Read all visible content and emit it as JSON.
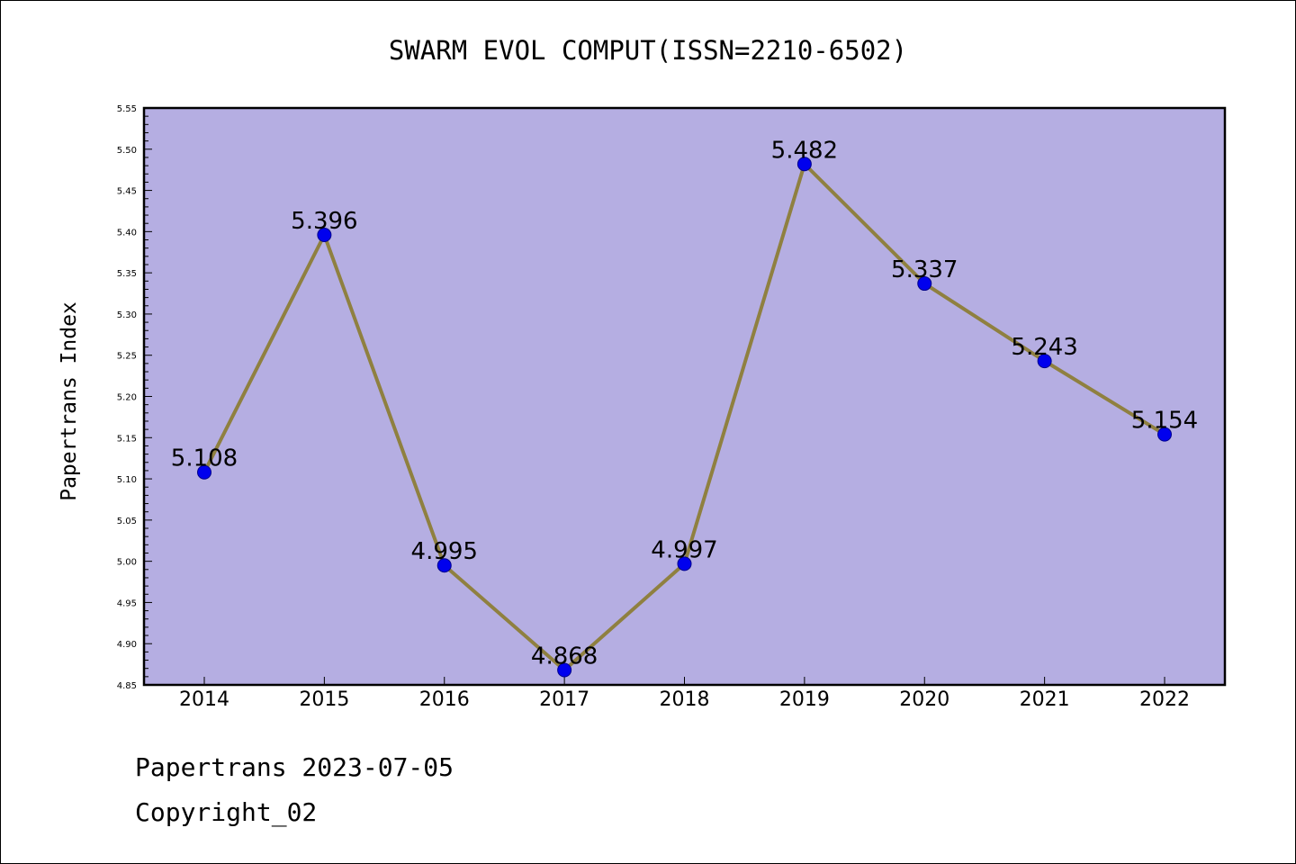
{
  "footer": {
    "line1": "Papertrans 2023-07-05",
    "line2": "Copyright_02"
  },
  "colors": {
    "plot_background": "#b5aee2",
    "line": "#8f8040",
    "marker": "#0000ee",
    "marker_edge": "#00008b"
  },
  "chart_data": {
    "type": "line",
    "title": "SWARM EVOL COMPUT(ISSN=2210-6502)",
    "xlabel": "",
    "ylabel": "Papertrans Index",
    "categories": [
      "2014",
      "2015",
      "2016",
      "2017",
      "2018",
      "2019",
      "2020",
      "2021",
      "2022"
    ],
    "series": [
      {
        "values": [
          5.108,
          5.396,
          4.995,
          4.868,
          4.997,
          5.482,
          5.337,
          5.243,
          5.154
        ],
        "labels": [
          "5.108",
          "5.396",
          "4.995",
          "4.868",
          "4.997",
          "5.482",
          "5.337",
          "5.243",
          "5.154"
        ]
      }
    ],
    "ylim": [
      4.85,
      5.55
    ],
    "yticks": [
      "4.85",
      "4.90",
      "4.95",
      "5.00",
      "5.05",
      "5.10",
      "5.15",
      "5.20",
      "5.25",
      "5.30",
      "5.35",
      "5.40",
      "5.45",
      "5.50",
      "5.55"
    ],
    "grid": false,
    "legend": "none"
  }
}
